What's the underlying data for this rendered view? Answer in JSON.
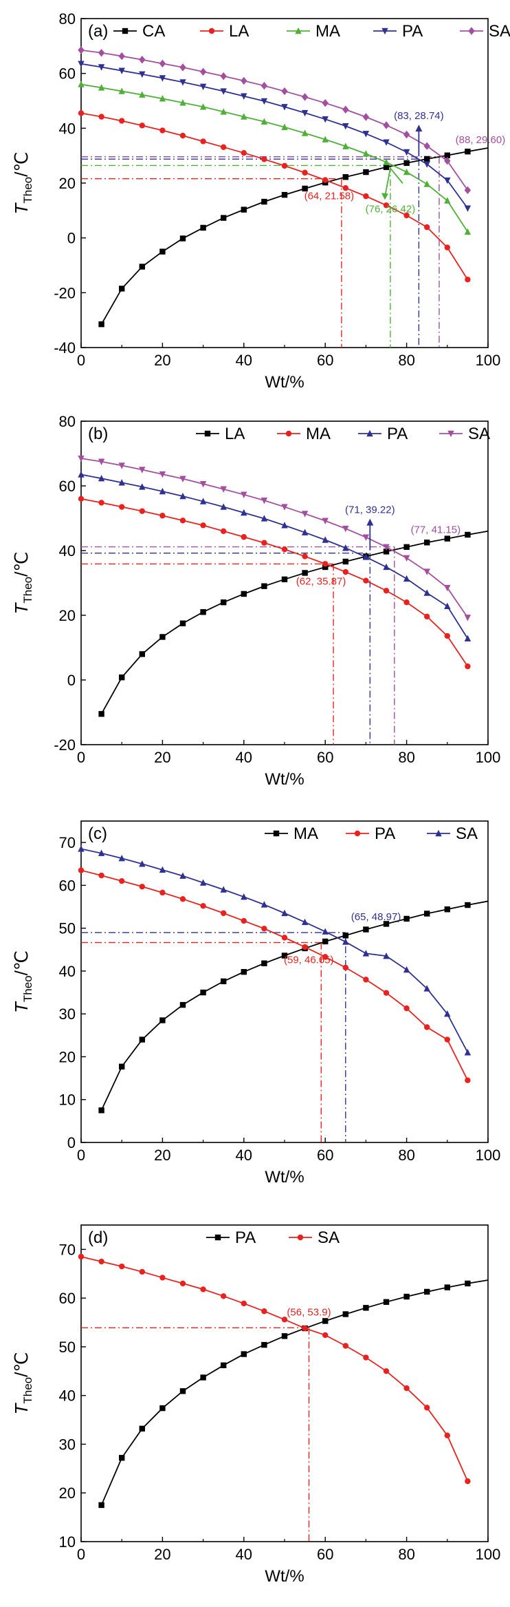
{
  "colors": {
    "CA": "#000000",
    "LA": "#e8231f",
    "MA": "#4fb038",
    "PA": "#2e3192",
    "SA": "#a44ea0",
    "axis": "#000000"
  },
  "chart_data": [
    {
      "type": "line",
      "panel_label": "(a)",
      "xlabel": "Wt/%",
      "ylabel_main": "T",
      "ylabel_sub": "Theo",
      "ylabel_unit": "/℃",
      "xlim": [
        0,
        100
      ],
      "ylim": [
        -40,
        80
      ],
      "xticks": [
        0,
        20,
        40,
        60,
        80,
        100
      ],
      "yticks": [
        -40,
        -20,
        0,
        20,
        40,
        60,
        80
      ],
      "legend": "top",
      "series": [
        {
          "name": "CA",
          "color_key": "CA",
          "marker": "square",
          "x": [
            5,
            10,
            15,
            20,
            25,
            30,
            35,
            40,
            45,
            50,
            55,
            60,
            65,
            70,
            75,
            80,
            85,
            90,
            95,
            100
          ],
          "y": [
            -31.5,
            -18.5,
            -10.5,
            -5,
            -0.2,
            3.7,
            7.3,
            10.3,
            13.2,
            15.7,
            18,
            20.2,
            22.2,
            24,
            25.8,
            27.3,
            28.8,
            30.1,
            31.5,
            32.8
          ]
        },
        {
          "name": "LA",
          "color_key": "LA",
          "marker": "circle",
          "x": [
            0,
            5,
            10,
            15,
            20,
            25,
            30,
            35,
            40,
            45,
            50,
            55,
            60,
            65,
            70,
            75,
            80,
            85,
            90,
            95
          ],
          "y": [
            45.5,
            44.2,
            42.7,
            41,
            39.2,
            37.3,
            35.2,
            33.1,
            31,
            28.7,
            26.3,
            23.8,
            21.1,
            18.2,
            15.2,
            11.9,
            8.2,
            3.9,
            -3.5,
            -15.2
          ]
        },
        {
          "name": "MA",
          "color_key": "MA",
          "marker": "triangle",
          "x": [
            0,
            5,
            10,
            15,
            20,
            25,
            30,
            35,
            40,
            45,
            50,
            55,
            60,
            65,
            70,
            75,
            80,
            85,
            90,
            95
          ],
          "y": [
            56,
            54.8,
            53.5,
            52.2,
            50.8,
            49.3,
            47.8,
            46,
            44.2,
            42.4,
            40.4,
            38.2,
            35.9,
            33.4,
            30.7,
            27.6,
            24,
            19.6,
            13.6,
            2.2
          ]
        },
        {
          "name": "PA",
          "color_key": "PA",
          "marker": "tri-down",
          "x": [
            0,
            5,
            10,
            15,
            20,
            25,
            30,
            35,
            40,
            45,
            50,
            55,
            60,
            65,
            70,
            75,
            80,
            85,
            90,
            95
          ],
          "y": [
            63.5,
            62.3,
            61,
            59.7,
            58.3,
            56.8,
            55.2,
            53.5,
            51.7,
            49.9,
            47.8,
            45.6,
            43.3,
            40.8,
            38,
            34.9,
            31.3,
            26.9,
            21,
            10.8
          ]
        },
        {
          "name": "SA",
          "color_key": "SA",
          "marker": "diamond",
          "x": [
            0,
            5,
            10,
            15,
            20,
            25,
            30,
            35,
            40,
            45,
            50,
            55,
            60,
            65,
            70,
            75,
            80,
            85,
            90,
            95
          ],
          "y": [
            68.5,
            67.5,
            66.3,
            65,
            63.6,
            62.2,
            60.6,
            59,
            57.3,
            55.5,
            53.5,
            51.4,
            49.2,
            46.8,
            44.1,
            41.1,
            37.7,
            33.5,
            28.1,
            17.4
          ]
        }
      ],
      "annotations": [
        {
          "label": "(64, 21.58)",
          "x": 64,
          "y": 21.58,
          "color_key": "LA",
          "pos": "below-left"
        },
        {
          "label": "(76, 26.42)",
          "x": 76,
          "y": 26.42,
          "color_key": "MA",
          "pos": "below-arrow"
        },
        {
          "label": "(83, 28.74)",
          "x": 83,
          "y": 28.74,
          "color_key": "PA",
          "pos": "above-arrow"
        },
        {
          "label": "(88, 29.60)",
          "x": 88,
          "y": 29.6,
          "color_key": "SA",
          "pos": "right"
        }
      ]
    },
    {
      "type": "line",
      "panel_label": "(b)",
      "xlabel": "Wt/%",
      "ylabel_main": "T",
      "ylabel_sub": "Theo",
      "ylabel_unit": "/℃",
      "xlim": [
        0,
        100
      ],
      "ylim": [
        -20,
        80
      ],
      "xticks": [
        0,
        20,
        40,
        60,
        80,
        100
      ],
      "yticks": [
        -20,
        0,
        20,
        40,
        60,
        80
      ],
      "legend": "top",
      "series": [
        {
          "name": "LA",
          "color_key": "CA",
          "marker": "square",
          "x": [
            5,
            10,
            15,
            20,
            25,
            30,
            35,
            40,
            45,
            50,
            55,
            60,
            65,
            70,
            75,
            80,
            85,
            90,
            95,
            100
          ],
          "y": [
            -10.5,
            0.8,
            8,
            13.3,
            17.5,
            21,
            24,
            26.6,
            29,
            31.1,
            33.1,
            34.9,
            36.6,
            38.2,
            39.7,
            41.1,
            42.5,
            43.7,
            44.9,
            46
          ]
        },
        {
          "name": "MA",
          "color_key": "LA",
          "marker": "circle",
          "x": [
            0,
            5,
            10,
            15,
            20,
            25,
            30,
            35,
            40,
            45,
            50,
            55,
            60,
            65,
            70,
            75,
            80,
            85,
            90,
            95
          ],
          "y": [
            56,
            54.8,
            53.5,
            52.2,
            50.8,
            49.3,
            47.8,
            46,
            44.2,
            42.4,
            40.4,
            38.2,
            35.9,
            33.4,
            30.7,
            27.6,
            24,
            19.6,
            13.6,
            4.2
          ]
        },
        {
          "name": "PA",
          "color_key": "PA",
          "marker": "triangle",
          "x": [
            0,
            5,
            10,
            15,
            20,
            25,
            30,
            35,
            40,
            45,
            50,
            55,
            60,
            65,
            70,
            75,
            80,
            85,
            90,
            95
          ],
          "y": [
            63.5,
            62.3,
            61,
            59.7,
            58.3,
            56.8,
            55.2,
            53.5,
            51.7,
            49.9,
            47.8,
            45.6,
            43.3,
            40.8,
            38,
            34.9,
            31.3,
            26.9,
            22.8,
            12.8
          ]
        },
        {
          "name": "SA",
          "color_key": "SA",
          "marker": "tri-down",
          "x": [
            0,
            5,
            10,
            15,
            20,
            25,
            30,
            35,
            40,
            45,
            50,
            55,
            60,
            65,
            70,
            75,
            80,
            85,
            90,
            95
          ],
          "y": [
            68.5,
            67.5,
            66.3,
            65,
            63.6,
            62.2,
            60.6,
            59,
            57.3,
            55.5,
            53.5,
            51.4,
            49.2,
            46.8,
            44.1,
            41.1,
            37.7,
            33.5,
            28.5,
            19.3
          ]
        }
      ],
      "annotations": [
        {
          "label": "(62, 35.87)",
          "x": 62,
          "y": 35.87,
          "color_key": "LA",
          "pos": "below-left"
        },
        {
          "label": "(71, 39.22)",
          "x": 71,
          "y": 39.22,
          "color_key": "PA",
          "pos": "above-arrow"
        },
        {
          "label": "(77, 41.15)",
          "x": 77,
          "y": 41.15,
          "color_key": "SA",
          "pos": "right"
        }
      ]
    },
    {
      "type": "line",
      "panel_label": "(c)",
      "xlabel": "Wt/%",
      "ylabel_main": "T",
      "ylabel_sub": "Theo",
      "ylabel_unit": "/℃",
      "xlim": [
        0,
        100
      ],
      "ylim": [
        0,
        75
      ],
      "xticks": [
        0,
        20,
        40,
        60,
        80,
        100
      ],
      "yticks": [
        0,
        10,
        20,
        30,
        40,
        50,
        60,
        70
      ],
      "legend": "top",
      "series": [
        {
          "name": "MA",
          "color_key": "CA",
          "marker": "square",
          "x": [
            5,
            10,
            15,
            20,
            25,
            30,
            35,
            40,
            45,
            50,
            55,
            60,
            65,
            70,
            75,
            80,
            85,
            90,
            95,
            100
          ],
          "y": [
            7.5,
            17.7,
            24,
            28.5,
            32.1,
            35,
            37.6,
            39.8,
            41.8,
            43.6,
            45.3,
            46.9,
            48.3,
            49.7,
            51,
            52.2,
            53.4,
            54.4,
            55.4,
            56.3
          ]
        },
        {
          "name": "PA",
          "color_key": "LA",
          "marker": "circle",
          "x": [
            0,
            5,
            10,
            15,
            20,
            25,
            30,
            35,
            40,
            45,
            50,
            55,
            60,
            65,
            70,
            75,
            80,
            85,
            90,
            95
          ],
          "y": [
            63.5,
            62.3,
            61,
            59.7,
            58.3,
            56.8,
            55.2,
            53.5,
            51.7,
            49.9,
            47.8,
            45.6,
            43.3,
            40.8,
            38,
            34.9,
            31.3,
            26.9,
            24,
            14.5
          ]
        },
        {
          "name": "SA",
          "color_key": "PA",
          "marker": "triangle",
          "x": [
            0,
            5,
            10,
            15,
            20,
            25,
            30,
            35,
            40,
            45,
            50,
            55,
            60,
            65,
            70,
            75,
            80,
            85,
            90,
            95
          ],
          "y": [
            68.5,
            67.5,
            66.3,
            65,
            63.6,
            62.2,
            60.6,
            59,
            57.3,
            55.5,
            53.5,
            51.4,
            49.2,
            46.8,
            44.1,
            43.5,
            40.3,
            35.9,
            30,
            21
          ]
        }
      ],
      "annotations": [
        {
          "label": "(59, 46.65)",
          "x": 59,
          "y": 46.65,
          "color_key": "LA",
          "pos": "below-left"
        },
        {
          "label": "(65, 48.97)",
          "x": 65,
          "y": 48.97,
          "color_key": "PA",
          "pos": "above-right"
        }
      ]
    },
    {
      "type": "line",
      "panel_label": "(d)",
      "xlabel": "Wt/%",
      "ylabel_main": "T",
      "ylabel_sub": "Theo",
      "ylabel_unit": "/℃",
      "xlim": [
        0,
        100
      ],
      "ylim": [
        10,
        75
      ],
      "xticks": [
        0,
        20,
        40,
        60,
        80,
        100
      ],
      "yticks": [
        10,
        20,
        30,
        40,
        50,
        60,
        70
      ],
      "legend": "top",
      "series": [
        {
          "name": "PA",
          "color_key": "CA",
          "marker": "square",
          "x": [
            5,
            10,
            15,
            20,
            25,
            30,
            35,
            40,
            45,
            50,
            55,
            60,
            65,
            70,
            75,
            80,
            85,
            90,
            95,
            100
          ],
          "y": [
            17.5,
            27.2,
            33.2,
            37.4,
            40.9,
            43.7,
            46.2,
            48.5,
            50.4,
            52.2,
            53.8,
            55.3,
            56.7,
            58,
            59.2,
            60.3,
            61.3,
            62.2,
            63,
            63.7
          ]
        },
        {
          "name": "SA",
          "color_key": "LA",
          "marker": "circle",
          "x": [
            0,
            5,
            10,
            15,
            20,
            25,
            30,
            35,
            40,
            45,
            50,
            55,
            60,
            65,
            70,
            75,
            80,
            85,
            90,
            95
          ],
          "y": [
            68.5,
            67.5,
            66.5,
            65.4,
            64.2,
            63,
            61.8,
            60.4,
            58.9,
            57.3,
            55.6,
            53.8,
            52.4,
            50.2,
            47.8,
            45,
            41.5,
            37.5,
            31.8,
            22.4
          ]
        }
      ],
      "annotations": [
        {
          "label": "(56, 53.9)",
          "x": 56,
          "y": 53.9,
          "color_key": "LA",
          "pos": "above"
        }
      ]
    }
  ]
}
